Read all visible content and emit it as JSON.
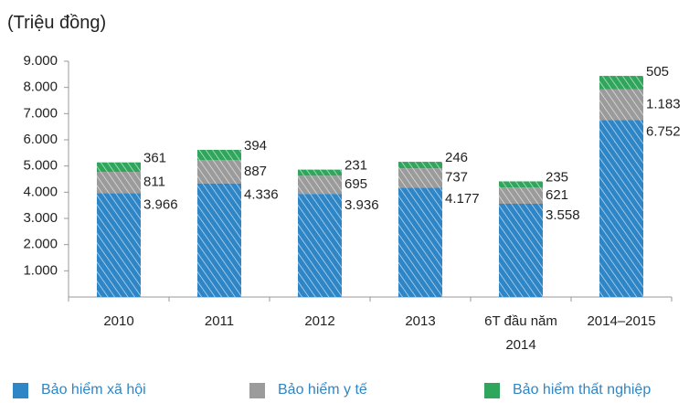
{
  "chart_data": {
    "type": "stacked_bar",
    "title": "(Triệu đồng)",
    "categories": [
      "2010",
      "2011",
      "2012",
      "2013",
      "6T đầu năm 2014",
      "2014–2015"
    ],
    "series": [
      {
        "name": "Bảo hiểm xã hội",
        "color": "#2f86c6",
        "values": [
          3966,
          4336,
          3936,
          4177,
          3558,
          6752
        ],
        "value_labels": [
          "3.966",
          "4.336",
          "3.936",
          "4.177",
          "3.558",
          "6.752"
        ]
      },
      {
        "name": "Bảo hiểm y tế",
        "color": "#9b9b9b",
        "values": [
          811,
          887,
          695,
          737,
          621,
          1183
        ],
        "value_labels": [
          "811",
          "887",
          "695",
          "737",
          "621",
          "1.183"
        ]
      },
      {
        "name": "Bảo hiểm thất nghiệp",
        "color": "#2fa65c",
        "values": [
          361,
          394,
          231,
          246,
          235,
          505
        ]
      }
    ],
    "ylim": [
      0,
      9000
    ],
    "yticks": [
      {
        "value": 1000,
        "label": "1.000"
      },
      {
        "value": 2000,
        "label": "2.000"
      },
      {
        "value": 3000,
        "label": "3.000"
      },
      {
        "value": 4000,
        "label": "4.000"
      },
      {
        "value": 5000,
        "label": "5.000"
      },
      {
        "value": 6000,
        "label": "6.000"
      },
      {
        "value": 7000,
        "label": "7.000"
      },
      {
        "value": 8000,
        "label": "8.000"
      },
      {
        "value": 9000,
        "label": "9.000"
      }
    ]
  }
}
